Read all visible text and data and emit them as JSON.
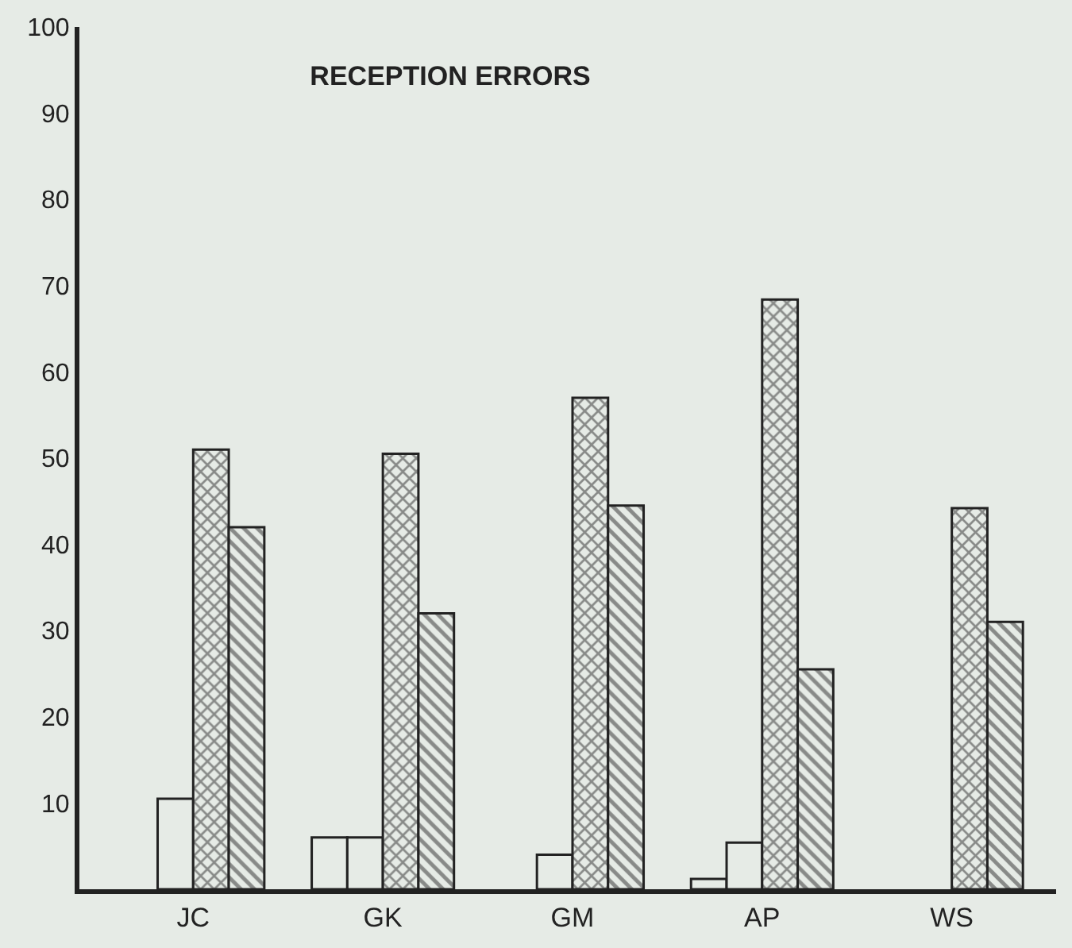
{
  "chart_data": {
    "type": "bar",
    "title": "RECEPTION ERRORS",
    "categories": [
      "JC",
      "GK",
      "GM",
      "AP",
      "WS"
    ],
    "series": [
      {
        "color": "#e6ebe6",
        "values": [
          null,
          6,
          null,
          1.2,
          null
        ]
      },
      {
        "color": "#e6ebe6",
        "values": [
          10.5,
          6,
          4,
          5.4,
          null
        ]
      },
      {
        "color": "#2a2a2a",
        "values": [
          51,
          50.5,
          57,
          68.4,
          44.2
        ]
      },
      {
        "color": "#2a2a2a",
        "values": [
          42,
          32,
          44.5,
          25.5,
          31
        ]
      }
    ],
    "ylim": [
      0,
      100
    ],
    "yticks": [
      10,
      20,
      30,
      40,
      50,
      60,
      70,
      80,
      90,
      100
    ],
    "grid": false,
    "legend": false
  }
}
